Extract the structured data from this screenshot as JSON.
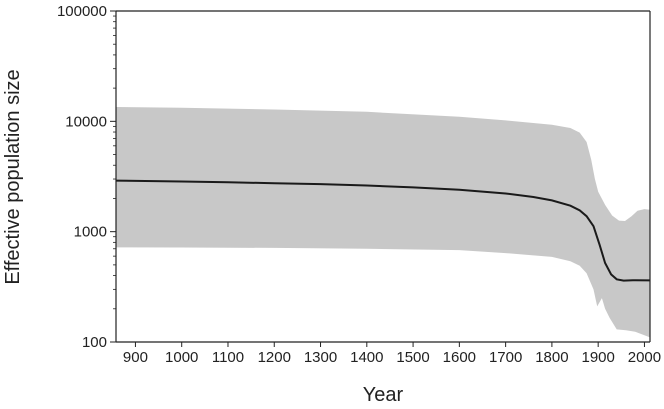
{
  "chart_data": {
    "type": "area",
    "title": "",
    "xlabel": "Year",
    "ylabel": "Effective population size",
    "xlim": [
      858,
      2012
    ],
    "ylim": [
      100,
      100000
    ],
    "y_scale": "log",
    "grid": false,
    "legend": "none",
    "x_ticks": [
      "900",
      "1000",
      "1100",
      "1200",
      "1300",
      "1400",
      "1500",
      "1600",
      "1700",
      "1800",
      "1900",
      "2000"
    ],
    "y_ticks": [
      "100",
      "1000",
      "10000",
      "100000"
    ],
    "colors": {
      "median": "#1a1a1a",
      "band": "#c8c8c8",
      "axis": "#222222"
    },
    "series": [
      {
        "values": [
          {
            "x": 858,
            "y": 2900
          },
          {
            "x": 1000,
            "y": 2850
          },
          {
            "x": 1100,
            "y": 2800
          },
          {
            "x": 1200,
            "y": 2750
          },
          {
            "x": 1300,
            "y": 2700
          },
          {
            "x": 1400,
            "y": 2620
          },
          {
            "x": 1500,
            "y": 2520
          },
          {
            "x": 1600,
            "y": 2400
          },
          {
            "x": 1700,
            "y": 2220
          },
          {
            "x": 1760,
            "y": 2060
          },
          {
            "x": 1800,
            "y": 1920
          },
          {
            "x": 1840,
            "y": 1720
          },
          {
            "x": 1860,
            "y": 1560
          },
          {
            "x": 1875,
            "y": 1380
          },
          {
            "x": 1890,
            "y": 1120
          },
          {
            "x": 1903,
            "y": 760
          },
          {
            "x": 1915,
            "y": 520
          },
          {
            "x": 1928,
            "y": 410
          },
          {
            "x": 1940,
            "y": 370
          },
          {
            "x": 1955,
            "y": 360
          },
          {
            "x": 1975,
            "y": 363
          },
          {
            "x": 2012,
            "y": 362
          }
        ]
      },
      {
        "upper": [
          {
            "x": 858,
            "y": 13500
          },
          {
            "x": 1000,
            "y": 13300
          },
          {
            "x": 1200,
            "y": 12800
          },
          {
            "x": 1400,
            "y": 12200
          },
          {
            "x": 1600,
            "y": 11000
          },
          {
            "x": 1700,
            "y": 10200
          },
          {
            "x": 1800,
            "y": 9300
          },
          {
            "x": 1840,
            "y": 8700
          },
          {
            "x": 1860,
            "y": 7900
          },
          {
            "x": 1875,
            "y": 6500
          },
          {
            "x": 1885,
            "y": 4500
          },
          {
            "x": 1893,
            "y": 3000
          },
          {
            "x": 1900,
            "y": 2300
          },
          {
            "x": 1915,
            "y": 1750
          },
          {
            "x": 1930,
            "y": 1400
          },
          {
            "x": 1945,
            "y": 1260
          },
          {
            "x": 1958,
            "y": 1250
          },
          {
            "x": 1972,
            "y": 1380
          },
          {
            "x": 1985,
            "y": 1550
          },
          {
            "x": 2000,
            "y": 1600
          },
          {
            "x": 2012,
            "y": 1580
          }
        ],
        "lower": [
          {
            "x": 858,
            "y": 720
          },
          {
            "x": 1000,
            "y": 718
          },
          {
            "x": 1200,
            "y": 712
          },
          {
            "x": 1400,
            "y": 700
          },
          {
            "x": 1600,
            "y": 680
          },
          {
            "x": 1700,
            "y": 640
          },
          {
            "x": 1800,
            "y": 590
          },
          {
            "x": 1840,
            "y": 540
          },
          {
            "x": 1860,
            "y": 490
          },
          {
            "x": 1875,
            "y": 420
          },
          {
            "x": 1890,
            "y": 300
          },
          {
            "x": 1898,
            "y": 210
          },
          {
            "x": 1908,
            "y": 250
          },
          {
            "x": 1915,
            "y": 200
          },
          {
            "x": 1925,
            "y": 165
          },
          {
            "x": 1940,
            "y": 130
          },
          {
            "x": 1960,
            "y": 128
          },
          {
            "x": 1980,
            "y": 124
          },
          {
            "x": 2000,
            "y": 115
          },
          {
            "x": 2012,
            "y": 110
          }
        ]
      }
    ]
  }
}
